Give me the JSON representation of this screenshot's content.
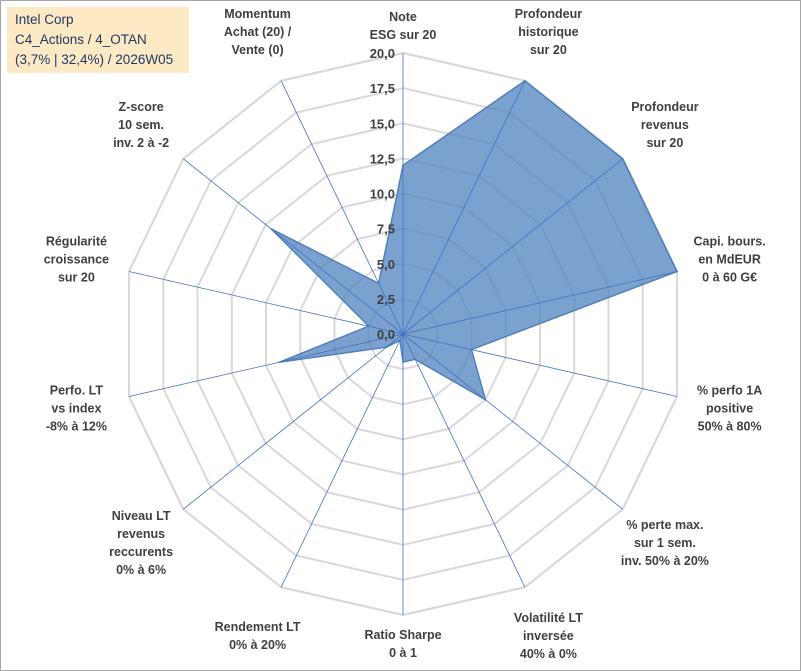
{
  "chart_data": {
    "type": "radar",
    "title_lines": [
      "Intel Corp",
      "C4_Actions / 4_OTAN",
      "(3,7% | 32,4%) / 2026W05"
    ],
    "rlim": [
      0,
      20
    ],
    "ticks": [
      "0,0",
      "2,5",
      "5,0",
      "7,5",
      "10,0",
      "12,5",
      "15,0",
      "17,5",
      "20,0"
    ],
    "grid": true,
    "axes": [
      {
        "label": [
          "Note",
          "ESG sur 20"
        ],
        "value": 12
      },
      {
        "label": [
          "Profondeur",
          "historique",
          "sur 20"
        ],
        "value": 20
      },
      {
        "label": [
          "Profondeur",
          "revenus",
          "sur 20"
        ],
        "value": 20
      },
      {
        "label": [
          "Capi. bours.",
          "en MdEUR",
          "0 à 60 G€"
        ],
        "value": 20
      },
      {
        "label": [
          "% perfo 1A",
          "positive",
          "50% à 80%"
        ],
        "value": 5
      },
      {
        "label": [
          "% perte max.",
          "sur 1 sem.",
          "inv. 50% à 20%"
        ],
        "value": 7.5
      },
      {
        "label": [
          "Volatilité LT",
          "inversée",
          "40% à 0%"
        ],
        "value": 2
      },
      {
        "label": [
          "Ratio Sharpe",
          "0 à 1"
        ],
        "value": 2
      },
      {
        "label": [
          "Rendement LT",
          "0% à 20%"
        ],
        "value": 0.5
      },
      {
        "label": [
          "Niveau LT",
          "revenus",
          "reccurents",
          "0% à 6%"
        ],
        "value": 1.5
      },
      {
        "label": [
          "Perfo. LT",
          "vs index",
          "-8% à 12%"
        ],
        "value": 9
      },
      {
        "label": [
          "Régularité",
          "croissance",
          "sur 20"
        ],
        "value": 2.5
      },
      {
        "label": [
          "Z-score",
          "10 sem.",
          "inv. 2 à -2"
        ],
        "value": 12
      },
      {
        "label": [
          "Momentum",
          "Achat (20) /",
          "Vente (0)"
        ],
        "value": 4
      }
    ],
    "series": [
      {
        "name": "Intel Corp",
        "color": "#4f81bd"
      }
    ]
  }
}
